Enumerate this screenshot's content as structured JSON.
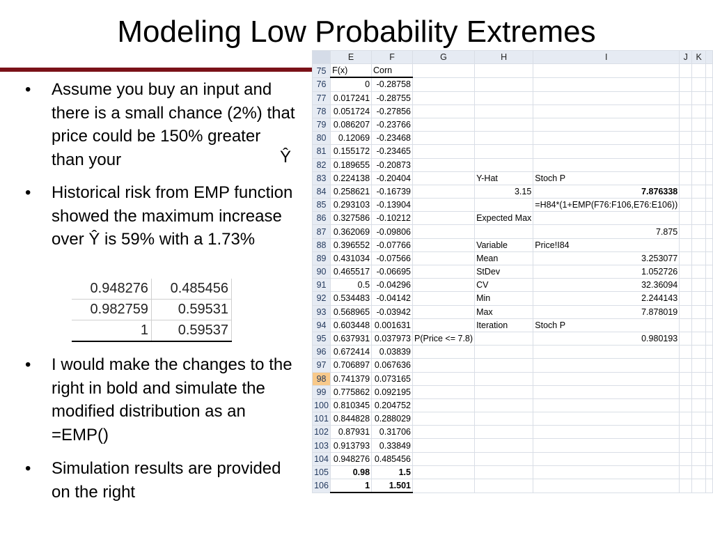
{
  "title": "Modeling Low Probability Extremes",
  "bullets": [
    "Assume you buy an input and there is a small chance (2%) that price could be 150% greater than your",
    "Historical risk from EMP function showed the maximum increase over Ŷ is 59% with a 1.73%",
    "I would make the changes to the right in bold and simulate the modified distribution as an =EMP()",
    "Simulation results are provided on the right"
  ],
  "yhat_symbol": "Ŷ",
  "mini_table": [
    [
      "0.948276",
      "0.485456"
    ],
    [
      "0.982759",
      "0.59531"
    ],
    [
      "1",
      "0.59537"
    ]
  ],
  "sheet": {
    "columns": [
      "E",
      "F",
      "G",
      "H",
      "I",
      "J",
      "K"
    ],
    "rows": [
      {
        "n": "75",
        "e": "F(x)",
        "f": "Corn"
      },
      {
        "n": "76",
        "e": "0",
        "f": "-0.28758"
      },
      {
        "n": "77",
        "e": "0.017241",
        "f": "-0.28755"
      },
      {
        "n": "78",
        "e": "0.051724",
        "f": "-0.27856"
      },
      {
        "n": "79",
        "e": "0.086207",
        "f": "-0.23766"
      },
      {
        "n": "80",
        "e": "0.12069",
        "f": "-0.23468"
      },
      {
        "n": "81",
        "e": "0.155172",
        "f": "-0.23465"
      },
      {
        "n": "82",
        "e": "0.189655",
        "f": "-0.20873"
      },
      {
        "n": "83",
        "e": "0.224138",
        "f": "-0.20404",
        "h": "Y-Hat",
        "i": "Stoch P"
      },
      {
        "n": "84",
        "e": "0.258621",
        "f": "-0.16739",
        "h": "3.15",
        "i": "7.876338"
      },
      {
        "n": "85",
        "e": "0.293103",
        "f": "-0.13904",
        "i": "=H84*(1+EMP(F76:F106,E76:E106))"
      },
      {
        "n": "86",
        "e": "0.327586",
        "f": "-0.10212",
        "h": "Expected Max"
      },
      {
        "n": "87",
        "e": "0.362069",
        "f": "-0.09806",
        "i": "7.875"
      },
      {
        "n": "88",
        "e": "0.396552",
        "f": "-0.07766",
        "h": "Variable",
        "i": "Price!I84"
      },
      {
        "n": "89",
        "e": "0.431034",
        "f": "-0.07566",
        "h": "Mean",
        "i": "3.253077"
      },
      {
        "n": "90",
        "e": "0.465517",
        "f": "-0.06695",
        "h": "StDev",
        "i": "1.052726"
      },
      {
        "n": "91",
        "e": "0.5",
        "f": "-0.04296",
        "h": "CV",
        "i": "32.36094"
      },
      {
        "n": "92",
        "e": "0.534483",
        "f": "-0.04142",
        "h": "Min",
        "i": "2.244143"
      },
      {
        "n": "93",
        "e": "0.568965",
        "f": "-0.03942",
        "h": "Max",
        "i": "7.878019"
      },
      {
        "n": "94",
        "e": "0.603448",
        "f": "0.001631",
        "h": "Iteration",
        "i": "Stoch P"
      },
      {
        "n": "95",
        "e": "0.637931",
        "f": "0.037973",
        "g": "P(Price <= 7.8)",
        "i": "0.980193"
      },
      {
        "n": "96",
        "e": "0.672414",
        "f": "0.03839"
      },
      {
        "n": "97",
        "e": "0.706897",
        "f": "0.067636"
      },
      {
        "n": "98",
        "e": "0.741379",
        "f": "0.073165"
      },
      {
        "n": "99",
        "e": "0.775862",
        "f": "0.092195"
      },
      {
        "n": "100",
        "e": "0.810345",
        "f": "0.204752"
      },
      {
        "n": "101",
        "e": "0.844828",
        "f": "0.288029"
      },
      {
        "n": "102",
        "e": "0.87931",
        "f": "0.31706"
      },
      {
        "n": "103",
        "e": "0.913793",
        "f": "0.33849"
      },
      {
        "n": "104",
        "e": "0.948276",
        "f": "0.485456"
      },
      {
        "n": "105",
        "e": "0.98",
        "f": "1.5"
      },
      {
        "n": "106",
        "e": "1",
        "f": "1.501"
      }
    ]
  },
  "colors": {
    "accent_rule": "#7a1118",
    "header_fill": "#e6ebf3",
    "selected_row_header": "#f8c98a"
  }
}
